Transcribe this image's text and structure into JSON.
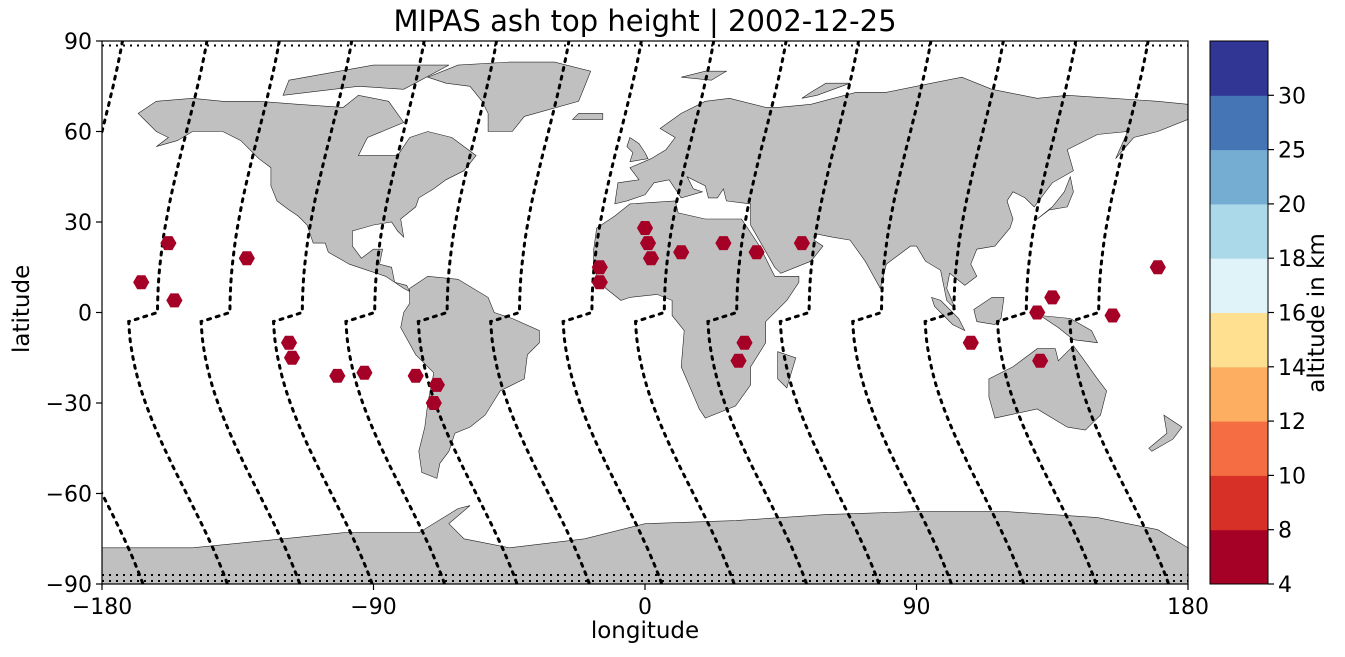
{
  "title": "MIPAS ash top height | 2002-12-25",
  "xlabel": "longitude",
  "ylabel": "latitude",
  "colorbar_label": "altitude in km",
  "colors": {
    "land": "#c0c0c0",
    "ocean": "#ffffff",
    "track": "#000000",
    "ash_marker": "#a50026"
  },
  "chart_data": {
    "type": "scatter",
    "title": "MIPAS ash top height | 2002-12-25",
    "xlabel": "longitude",
    "ylabel": "latitude",
    "xlim": [
      -180,
      180
    ],
    "ylim": [
      -90,
      90
    ],
    "xticks": [
      -180,
      -90,
      0,
      90,
      180
    ],
    "yticks": [
      -90,
      -60,
      -30,
      0,
      30,
      60,
      90
    ],
    "xtick_labels": [
      "−180",
      "−90",
      "0",
      "90",
      "180"
    ],
    "ytick_labels": [
      "−90",
      "−60",
      "−30",
      "0",
      "30",
      "60",
      "90"
    ],
    "colorbar": {
      "label": "altitude in km",
      "bounds": [
        4,
        8,
        10,
        12,
        14,
        16,
        18,
        20,
        25,
        30
      ],
      "tick_labels": [
        "4",
        "8",
        "10",
        "12",
        "14",
        "16",
        "18",
        "20",
        "25",
        "30"
      ],
      "colors": [
        "#a50026",
        "#d73027",
        "#f46d43",
        "#fdae61",
        "#fee090",
        "#e0f3f8",
        "#abd9e9",
        "#74add1",
        "#4575b4",
        "#313695"
      ]
    },
    "ash_detections": [
      {
        "lon": -167,
        "lat": 10,
        "alt_km": 6
      },
      {
        "lon": -158,
        "lat": 23,
        "alt_km": 6
      },
      {
        "lon": -156,
        "lat": 4,
        "alt_km": 6
      },
      {
        "lon": -132,
        "lat": 18,
        "alt_km": 6
      },
      {
        "lon": -118,
        "lat": -10,
        "alt_km": 6
      },
      {
        "lon": -117,
        "lat": -15,
        "alt_km": 6
      },
      {
        "lon": -102,
        "lat": -21,
        "alt_km": 6
      },
      {
        "lon": -93,
        "lat": -20,
        "alt_km": 6
      },
      {
        "lon": -76,
        "lat": -21,
        "alt_km": 6
      },
      {
        "lon": -69,
        "lat": -24,
        "alt_km": 6
      },
      {
        "lon": -70,
        "lat": -30,
        "alt_km": 6
      },
      {
        "lon": -15,
        "lat": 15,
        "alt_km": 6
      },
      {
        "lon": -15,
        "lat": 10,
        "alt_km": 6
      },
      {
        "lon": 0,
        "lat": 28,
        "alt_km": 6
      },
      {
        "lon": 1,
        "lat": 23,
        "alt_km": 6
      },
      {
        "lon": 2,
        "lat": 18,
        "alt_km": 6
      },
      {
        "lon": 12,
        "lat": 20,
        "alt_km": 6
      },
      {
        "lon": 26,
        "lat": 23,
        "alt_km": 6
      },
      {
        "lon": 37,
        "lat": 20,
        "alt_km": 6
      },
      {
        "lon": 52,
        "lat": 23,
        "alt_km": 6
      },
      {
        "lon": 33,
        "lat": -10,
        "alt_km": 6
      },
      {
        "lon": 31,
        "lat": -16,
        "alt_km": 6
      },
      {
        "lon": 108,
        "lat": -10,
        "alt_km": 6
      },
      {
        "lon": 130,
        "lat": 0,
        "alt_km": 6
      },
      {
        "lon": 135,
        "lat": 5,
        "alt_km": 6
      },
      {
        "lon": 131,
        "lat": -16,
        "alt_km": 6
      },
      {
        "lon": 155,
        "lat": -1,
        "alt_km": 6
      },
      {
        "lon": 170,
        "lat": 15,
        "alt_km": 6
      }
    ],
    "orbit_tracks": [
      {
        "lon": -180,
        "amp": 12
      },
      {
        "lon": -152,
        "amp": 12
      },
      {
        "lon": -128,
        "amp": 12
      },
      {
        "lon": -104,
        "amp": 12
      },
      {
        "lon": -80,
        "amp": 12
      },
      {
        "lon": -56,
        "amp": 12
      },
      {
        "lon": -32,
        "amp": 12
      },
      {
        "lon": -8,
        "amp": 12
      },
      {
        "lon": 16,
        "amp": 12
      },
      {
        "lon": 40,
        "amp": 12
      },
      {
        "lon": 64,
        "amp": 12
      },
      {
        "lon": 88,
        "amp": 12
      },
      {
        "lon": 112,
        "amp": 12
      },
      {
        "lon": 136,
        "amp": 12
      },
      {
        "lon": 160,
        "amp": 12
      }
    ]
  }
}
